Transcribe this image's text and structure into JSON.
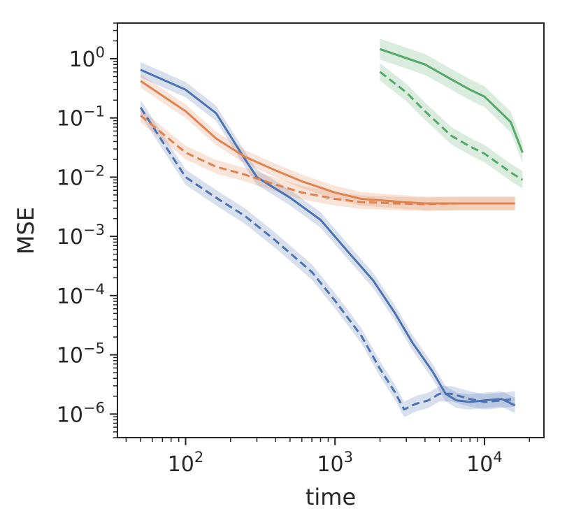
{
  "chart_data": {
    "type": "line",
    "title": "",
    "xlabel": "time",
    "ylabel": "MSE",
    "xscale": "log",
    "yscale": "log",
    "xlim": [
      35,
      25000
    ],
    "ylim": [
      4e-07,
      4
    ],
    "grid": false,
    "legend": "none",
    "x_ticks": [
      {
        "value": 100,
        "base": "10",
        "exp": "2"
      },
      {
        "value": 1000,
        "base": "10",
        "exp": "3"
      },
      {
        "value": 10000,
        "base": "10",
        "exp": "4"
      }
    ],
    "y_ticks": [
      {
        "value": 1,
        "base": "10",
        "exp": "0"
      },
      {
        "value": 0.1,
        "base": "10",
        "exp": "−1"
      },
      {
        "value": 0.01,
        "base": "10",
        "exp": "−2"
      },
      {
        "value": 0.001,
        "base": "10",
        "exp": "−3"
      },
      {
        "value": 0.0001,
        "base": "10",
        "exp": "−4"
      },
      {
        "value": 1e-05,
        "base": "10",
        "exp": "−5"
      },
      {
        "value": 1e-06,
        "base": "10",
        "exp": "−6"
      }
    ],
    "series": [
      {
        "color": "#4c72b0",
        "style": "solid",
        "band_factor": 1.35,
        "x": [
          50,
          100,
          160,
          250,
          300,
          500,
          800,
          1200,
          1800,
          2500,
          3300,
          4500,
          5500,
          6500,
          8000,
          10000,
          13000,
          16000
        ],
        "y": [
          0.65,
          0.3,
          0.12,
          0.02,
          0.01,
          0.0045,
          0.0019,
          0.00058,
          0.00018,
          5.2e-05,
          1.6e-05,
          5.2e-06,
          2.2e-06,
          1.7e-06,
          1.6e-06,
          1.7e-06,
          1.8e-06,
          1.4e-06
        ]
      },
      {
        "color": "#4c72b0",
        "style": "dashed",
        "band_factor": 1.35,
        "x": [
          50,
          70,
          100,
          160,
          250,
          400,
          700,
          1000,
          1500,
          2000,
          2500,
          2900,
          3500,
          4200,
          5000,
          6000,
          8000,
          10000,
          13000,
          16000
        ],
        "y": [
          0.15,
          0.04,
          0.01,
          0.0045,
          0.0022,
          0.00085,
          0.00025,
          8.2e-05,
          2.1e-05,
          5.8e-06,
          2.4e-06,
          1.2e-06,
          1.5e-06,
          1.7e-06,
          2.2e-06,
          2.2e-06,
          1.8e-06,
          1.6e-06,
          1.7e-06,
          1.8e-06
        ]
      },
      {
        "color": "#dd8452",
        "style": "solid",
        "band_factor": 1.3,
        "x": [
          50,
          100,
          160,
          250,
          400,
          600,
          1000,
          1500,
          2500,
          4000,
          7000,
          10000,
          16000
        ],
        "y": [
          0.42,
          0.13,
          0.045,
          0.022,
          0.013,
          0.0085,
          0.0055,
          0.0043,
          0.0039,
          0.0036,
          0.0036,
          0.0036,
          0.0036
        ]
      },
      {
        "color": "#dd8452",
        "style": "dashed",
        "band_factor": 1.3,
        "x": [
          50,
          100,
          160,
          250,
          400,
          600,
          1000,
          1500,
          2500,
          4000,
          7000,
          10000,
          16000
        ],
        "y": [
          0.11,
          0.026,
          0.015,
          0.011,
          0.0075,
          0.0055,
          0.0043,
          0.0038,
          0.0036,
          0.0035,
          0.0036,
          0.0036,
          0.0036
        ]
      },
      {
        "color": "#55a868",
        "style": "solid",
        "band_factor": 1.5,
        "x": [
          2000,
          4000,
          6000,
          8000,
          10000,
          15000,
          18000
        ],
        "y": [
          1.45,
          0.8,
          0.45,
          0.3,
          0.23,
          0.085,
          0.026
        ]
      },
      {
        "color": "#55a868",
        "style": "dashed",
        "band_factor": 1.4,
        "x": [
          2000,
          3000,
          4000,
          6000,
          8000,
          10000,
          15000,
          18000
        ],
        "y": [
          0.6,
          0.27,
          0.13,
          0.05,
          0.033,
          0.025,
          0.012,
          0.009
        ]
      }
    ]
  }
}
